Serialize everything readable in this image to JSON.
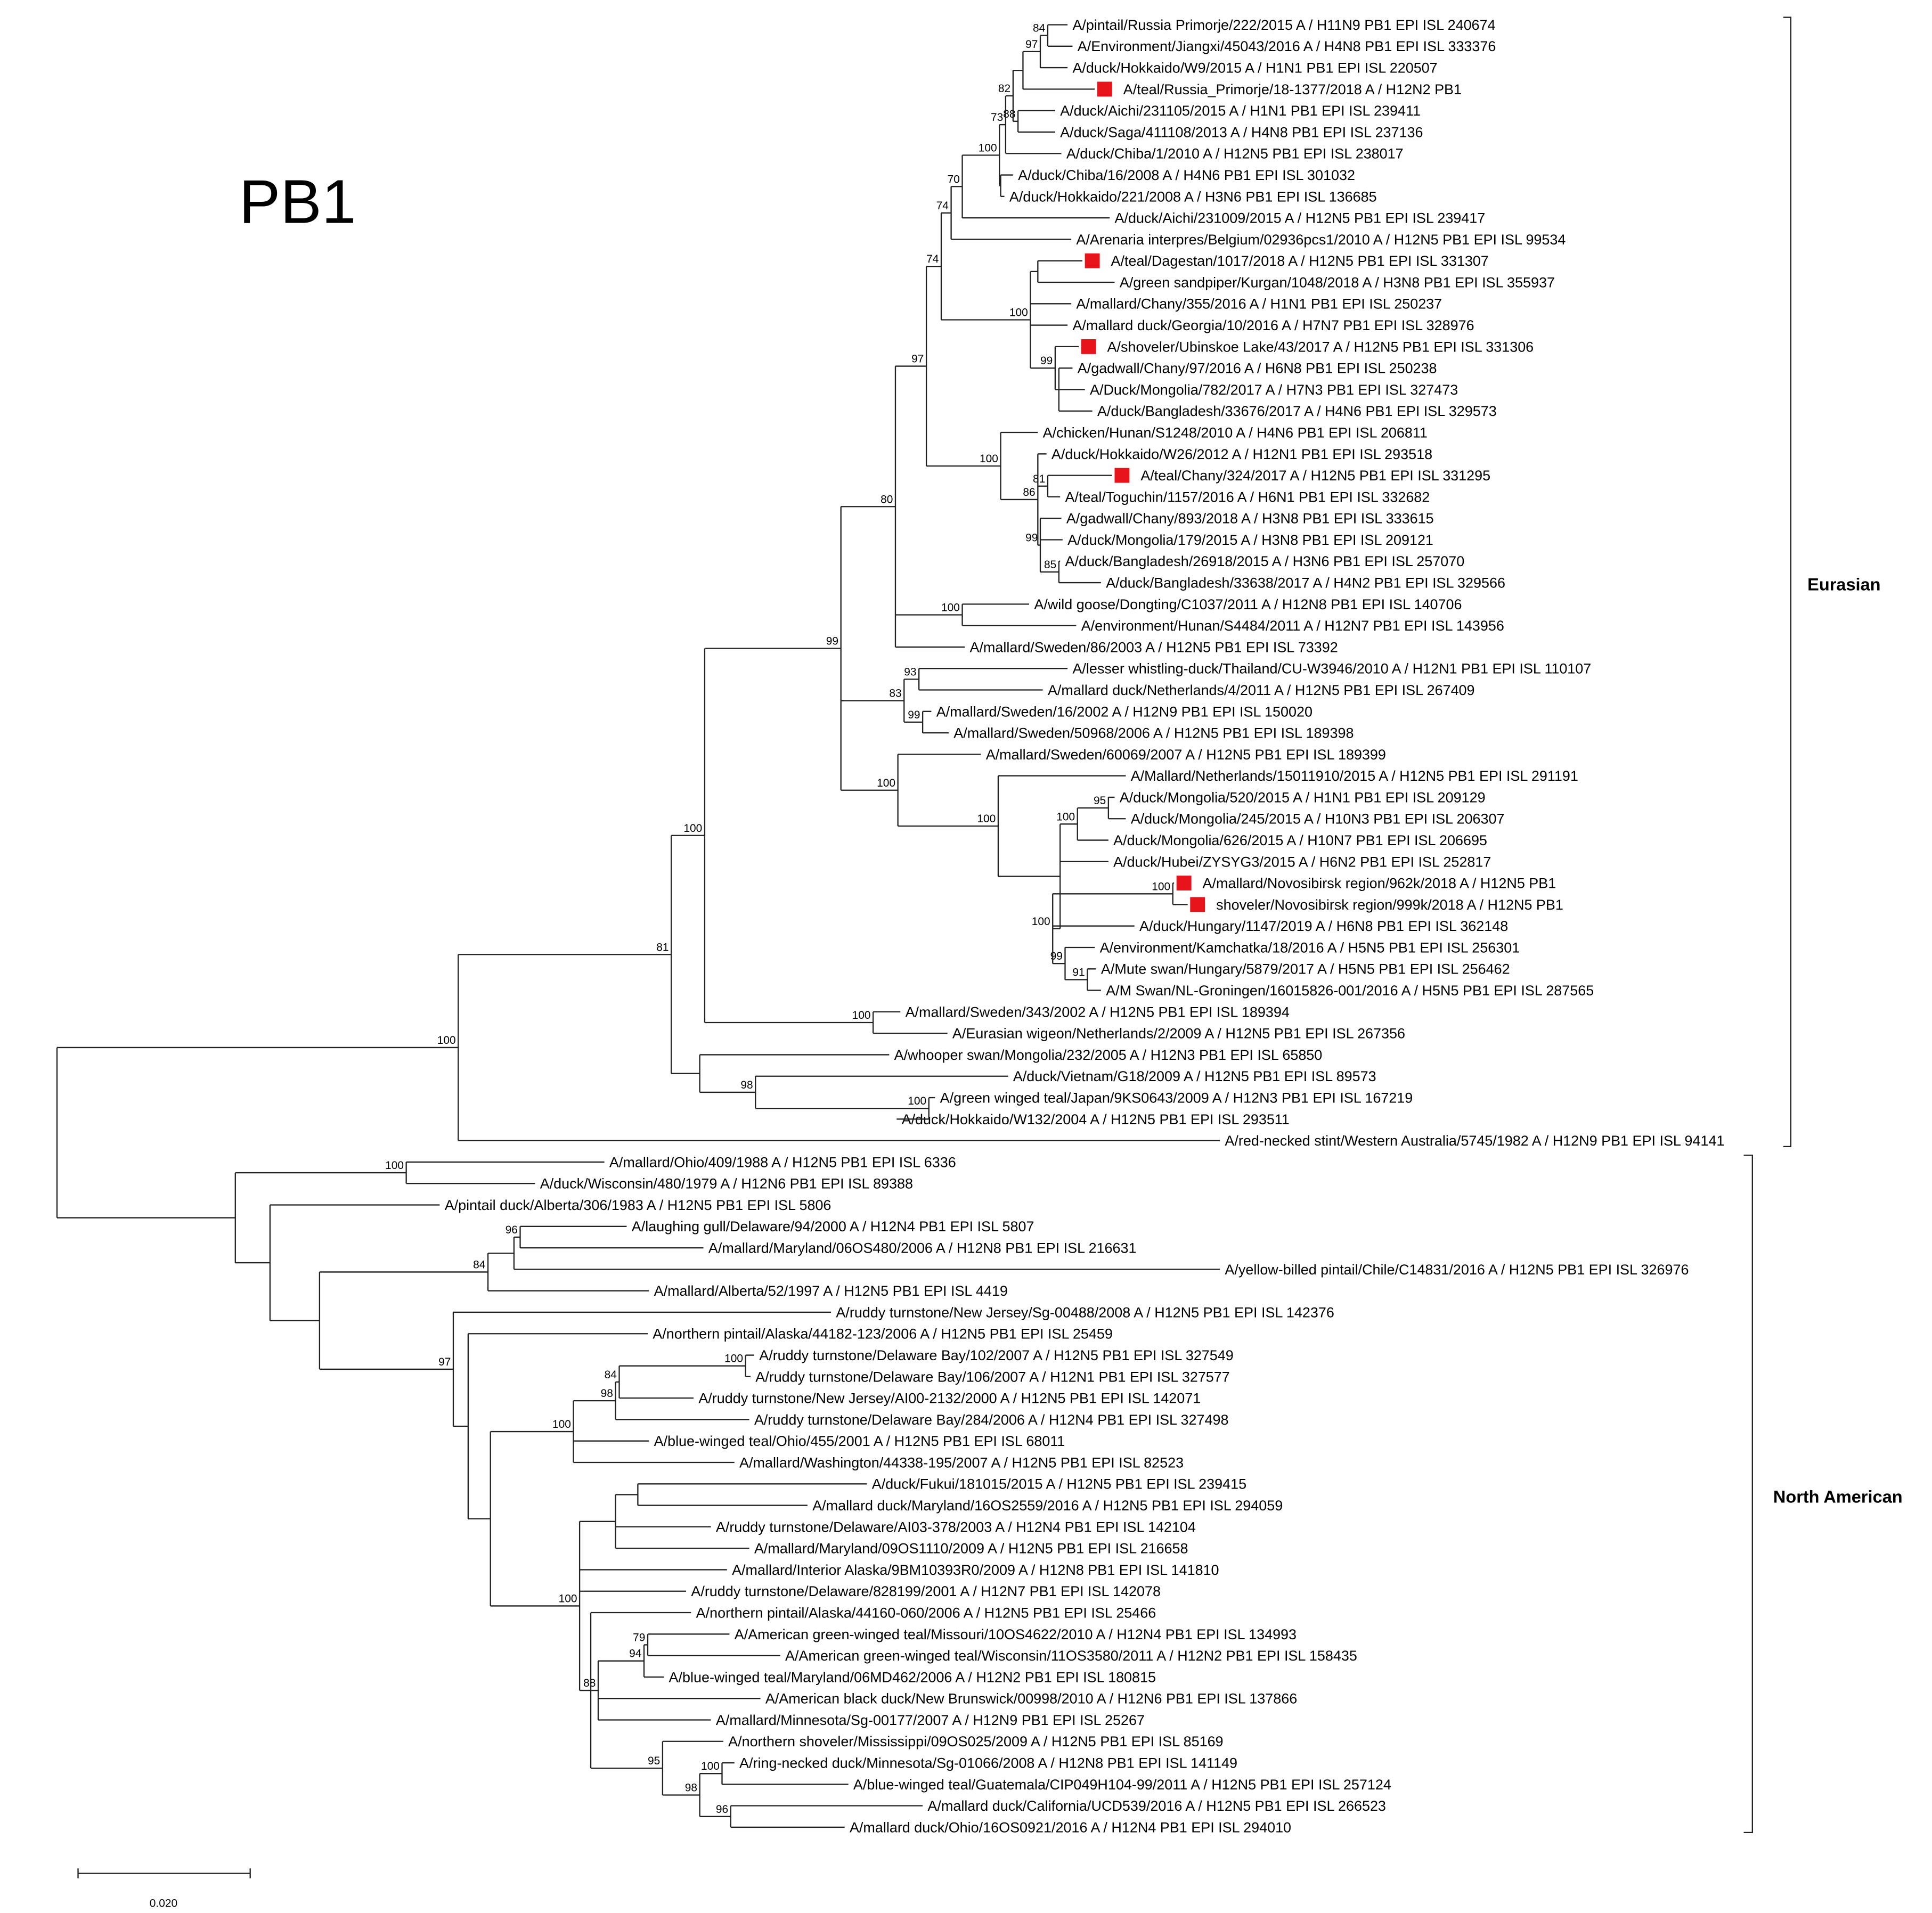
{
  "title": "PB1",
  "taxa": [
    {
      "label": "A/pintail/Russia Primorje/222/2015 A / H11N9 PB1 EPI ISL 240674"
    },
    {
      "label": "A/Environment/Jiangxi/45043/2016 A / H4N8 PB1 EPI ISL 333376"
    },
    {
      "label": "A/duck/Hokkaido/W9/2015 A / H1N1 PB1 EPI ISL 220507"
    },
    {
      "label": "A/teal/Russia_Primorje/18-1377/2018 A / H12N2 PB1",
      "marked": true
    },
    {
      "label": "A/duck/Aichi/231105/2015 A / H1N1 PB1 EPI ISL 239411"
    },
    {
      "label": "A/duck/Saga/411108/2013 A / H4N8 PB1 EPI ISL 237136"
    },
    {
      "label": "A/duck/Chiba/1/2010 A / H12N5 PB1 EPI ISL 238017"
    },
    {
      "label": "A/duck/Chiba/16/2008 A / H4N6 PB1 EPI ISL 301032"
    },
    {
      "label": "A/duck/Hokkaido/221/2008 A / H3N6 PB1 EPI ISL 136685"
    },
    {
      "label": "A/duck/Aichi/231009/2015 A / H12N5 PB1 EPI ISL 239417"
    },
    {
      "label": "A/Arenaria interpres/Belgium/02936pcs1/2010 A / H12N5 PB1 EPI ISL 99534"
    },
    {
      "label": "A/teal/Dagestan/1017/2018 A / H12N5 PB1 EPI ISL 331307",
      "marked": true
    },
    {
      "label": "A/green sandpiper/Kurgan/1048/2018 A / H3N8 PB1 EPI ISL 355937"
    },
    {
      "label": "A/mallard/Chany/355/2016 A / H1N1 PB1 EPI ISL 250237"
    },
    {
      "label": "A/mallard duck/Georgia/10/2016 A / H7N7 PB1 EPI ISL 328976"
    },
    {
      "label": "A/shoveler/Ubinskoe Lake/43/2017 A / H12N5 PB1 EPI ISL 331306",
      "marked": true
    },
    {
      "label": "A/gadwall/Chany/97/2016 A / H6N8 PB1 EPI ISL 250238"
    },
    {
      "label": "A/Duck/Mongolia/782/2017 A / H7N3 PB1 EPI ISL 327473"
    },
    {
      "label": "A/duck/Bangladesh/33676/2017 A / H4N6 PB1 EPI ISL 329573"
    },
    {
      "label": "A/chicken/Hunan/S1248/2010 A / H4N6 PB1 EPI ISL 206811"
    },
    {
      "label": "A/duck/Hokkaido/W26/2012 A / H12N1 PB1 EPI ISL 293518"
    },
    {
      "label": "A/teal/Chany/324/2017 A / H12N5 PB1 EPI ISL 331295",
      "marked": true
    },
    {
      "label": "A/teal/Toguchin/1157/2016 A / H6N1 PB1 EPI ISL 332682"
    },
    {
      "label": "A/gadwall/Chany/893/2018 A / H3N8 PB1 EPI ISL 333615"
    },
    {
      "label": "A/duck/Mongolia/179/2015 A / H3N8 PB1 EPI ISL 209121"
    },
    {
      "label": "A/duck/Bangladesh/26918/2015 A / H3N6 PB1 EPI ISL 257070"
    },
    {
      "label": "A/duck/Bangladesh/33638/2017 A / H4N2 PB1 EPI ISL 329566"
    },
    {
      "label": "A/wild goose/Dongting/C1037/2011 A / H12N8 PB1 EPI ISL 140706"
    },
    {
      "label": "A/environment/Hunan/S4484/2011 A / H12N7 PB1 EPI ISL 143956"
    },
    {
      "label": "A/mallard/Sweden/86/2003 A / H12N5 PB1 EPI ISL 73392"
    },
    {
      "label": "A/lesser whistling-duck/Thailand/CU-W3946/2010 A / H12N1 PB1 EPI ISL 110107"
    },
    {
      "label": "A/mallard duck/Netherlands/4/2011 A / H12N5 PB1 EPI ISL 267409"
    },
    {
      "label": "A/mallard/Sweden/16/2002 A / H12N9 PB1 EPI ISL 150020"
    },
    {
      "label": "A/mallard/Sweden/50968/2006 A / H12N5 PB1 EPI ISL 189398"
    },
    {
      "label": "A/mallard/Sweden/60069/2007 A / H12N5 PB1 EPI ISL 189399"
    },
    {
      "label": "A/Mallard/Netherlands/15011910/2015 A / H12N5 PB1 EPI ISL 291191"
    },
    {
      "label": "A/duck/Mongolia/520/2015 A / H1N1 PB1 EPI ISL 209129"
    },
    {
      "label": "A/duck/Mongolia/245/2015 A / H10N3 PB1 EPI ISL 206307"
    },
    {
      "label": "A/duck/Mongolia/626/2015 A / H10N7 PB1 EPI ISL 206695"
    },
    {
      "label": "A/duck/Hubei/ZYSYG3/2015 A / H6N2 PB1 EPI ISL 252817"
    },
    {
      "label": "A/mallard/Novosibirsk region/962k/2018 A / H12N5 PB1",
      "marked": true
    },
    {
      "label": "shoveler/Novosibirsk region/999k/2018 A / H12N5 PB1",
      "marked": true
    },
    {
      "label": "A/duck/Hungary/1147/2019 A / H6N8 PB1 EPI ISL 362148"
    },
    {
      "label": "A/environment/Kamchatka/18/2016 A / H5N5 PB1 EPI ISL 256301"
    },
    {
      "label": "A/Mute swan/Hungary/5879/2017 A / H5N5 PB1 EPI ISL 256462"
    },
    {
      "label": "A/M Swan/NL-Groningen/16015826-001/2016 A / H5N5 PB1 EPI ISL 287565"
    },
    {
      "label": "A/mallard/Sweden/343/2002 A / H12N5 PB1 EPI ISL 189394"
    },
    {
      "label": "A/Eurasian wigeon/Netherlands/2/2009 A / H12N5 PB1 EPI ISL 267356"
    },
    {
      "label": "A/whooper swan/Mongolia/232/2005 A / H12N3 PB1 EPI ISL 65850"
    },
    {
      "label": "A/duck/Vietnam/G18/2009 A / H12N5 PB1 EPI ISL 89573"
    },
    {
      "label": "A/green winged teal/Japan/9KS0643/2009 A / H12N3 PB1 EPI ISL 167219"
    },
    {
      "label": "A/duck/Hokkaido/W132/2004 A / H12N5 PB1 EPI ISL 293511"
    },
    {
      "label": "A/red-necked stint/Western Australia/5745/1982 A / H12N9 PB1 EPI ISL 94141"
    },
    {
      "label": "A/mallard/Ohio/409/1988 A / H12N5 PB1 EPI ISL 6336"
    },
    {
      "label": "A/duck/Wisconsin/480/1979 A / H12N6 PB1 EPI ISL 89388"
    },
    {
      "label": "A/pintail duck/Alberta/306/1983 A / H12N5 PB1 EPI ISL 5806"
    },
    {
      "label": "A/laughing gull/Delaware/94/2000 A / H12N4 PB1 EPI ISL 5807"
    },
    {
      "label": "A/mallard/Maryland/06OS480/2006 A / H12N8 PB1 EPI ISL 216631"
    },
    {
      "label": "A/yellow-billed pintail/Chile/C14831/2016 A / H12N5 PB1 EPI ISL 326976"
    },
    {
      "label": "A/mallard/Alberta/52/1997 A / H12N5 PB1 EPI ISL 4419"
    },
    {
      "label": "A/ruddy turnstone/New Jersey/Sg-00488/2008 A / H12N5 PB1 EPI ISL 142376"
    },
    {
      "label": "A/northern pintail/Alaska/44182-123/2006 A / H12N5 PB1 EPI ISL 25459"
    },
    {
      "label": "A/ruddy turnstone/Delaware Bay/102/2007 A / H12N5 PB1 EPI ISL 327549"
    },
    {
      "label": "A/ruddy turnstone/Delaware Bay/106/2007 A / H12N1 PB1 EPI ISL 327577"
    },
    {
      "label": "A/ruddy turnstone/New Jersey/AI00-2132/2000 A / H12N5 PB1 EPI ISL 142071"
    },
    {
      "label": "A/ruddy turnstone/Delaware Bay/284/2006 A / H12N4 PB1 EPI ISL 327498"
    },
    {
      "label": "A/blue-winged teal/Ohio/455/2001 A / H12N5 PB1 EPI ISL 68011"
    },
    {
      "label": "A/mallard/Washington/44338-195/2007 A / H12N5 PB1 EPI ISL 82523"
    },
    {
      "label": "A/duck/Fukui/181015/2015 A / H12N5 PB1 EPI ISL 239415"
    },
    {
      "label": "A/mallard duck/Maryland/16OS2559/2016 A / H12N5 PB1 EPI ISL 294059"
    },
    {
      "label": "A/ruddy turnstone/Delaware/AI03-378/2003 A / H12N4 PB1 EPI ISL 142104"
    },
    {
      "label": "A/mallard/Maryland/09OS1110/2009 A / H12N5 PB1 EPI ISL 216658"
    },
    {
      "label": "A/mallard/Interior Alaska/9BM10393R0/2009 A / H12N8 PB1 EPI ISL 141810"
    },
    {
      "label": "A/ruddy turnstone/Delaware/828199/2001 A / H12N7 PB1 EPI ISL 142078"
    },
    {
      "label": "A/northern pintail/Alaska/44160-060/2006 A / H12N5 PB1 EPI ISL 25466"
    },
    {
      "label": "A/American green-winged teal/Missouri/10OS4622/2010 A / H12N4 PB1 EPI ISL 134993"
    },
    {
      "label": "A/American green-winged teal/Wisconsin/11OS3580/2011 A / H12N2 PB1 EPI ISL 158435"
    },
    {
      "label": "A/blue-winged teal/Maryland/06MD462/2006 A / H12N2 PB1 EPI ISL 180815"
    },
    {
      "label": "A/American black duck/New Brunswick/00998/2010 A / H12N6 PB1 EPI ISL 137866"
    },
    {
      "label": "A/mallard/Minnesota/Sg-00177/2007 A / H12N9 PB1 EPI ISL 25267"
    },
    {
      "label": "A/northern shoveler/Mississippi/09OS025/2009 A / H12N5 PB1 EPI ISL 85169"
    },
    {
      "label": "A/ring-necked duck/Minnesota/Sg-01066/2008 A / H12N8 PB1 EPI ISL 141149"
    },
    {
      "label": "A/blue-winged teal/Guatemala/CIP049H104-99/2011 A / H12N5 PB1 EPI ISL 257124"
    },
    {
      "label": "A/mallard duck/California/UCD539/2016 A / H12N5 PB1 EPI ISL 266523"
    },
    {
      "label": "A/mallard duck/Ohio/16OS0921/2016 A / H12N4 PB1 EPI ISL 294010"
    }
  ],
  "support": [
    100,
    81,
    100,
    99,
    80,
    97,
    74,
    74,
    70,
    100,
    73,
    82,
    97,
    84,
    88,
    100,
    99,
    100,
    86,
    81,
    99,
    85,
    100,
    83,
    93,
    99,
    100,
    100,
    100,
    95,
    100,
    100,
    99,
    91,
    100,
    98,
    100,
    100,
    84,
    96,
    97,
    100,
    98,
    84,
    100,
    100,
    88,
    94,
    79,
    95,
    98,
    100,
    96
  ],
  "clades": [
    {
      "label": "Eurasian"
    },
    {
      "label": "North American"
    }
  ],
  "scale_bar": {
    "label": "0.020"
  }
}
